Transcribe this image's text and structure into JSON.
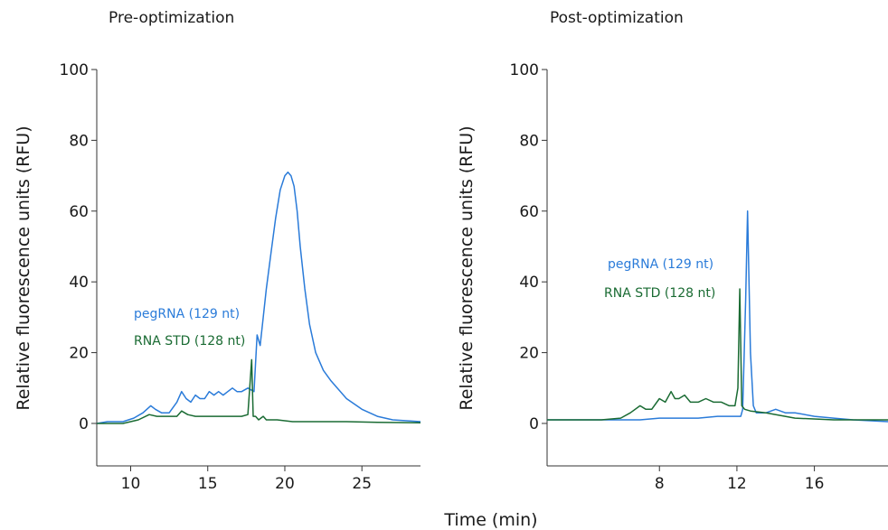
{
  "x_axis_title": "Time (min)",
  "colors": {
    "pegRNA": "#2a7bd9",
    "std": "#1a6b33"
  },
  "chart_data": [
    {
      "type": "line",
      "title": "Pre-optimization",
      "xlabel": "Time (min)",
      "ylabel": "Relative fluorescence units (RFU)",
      "xlim": [
        7.8,
        28.8
      ],
      "ylim": [
        -12,
        100
      ],
      "xticks": [
        10,
        15,
        20,
        25
      ],
      "yticks": [
        0,
        20,
        40,
        60,
        80,
        100
      ],
      "series": [
        {
          "name": "pegRNA (129 nt)",
          "color": "#2a7bd9",
          "x": [
            7.8,
            8.5,
            9.5,
            10.2,
            10.8,
            11.3,
            11.6,
            12.0,
            12.5,
            13.0,
            13.3,
            13.6,
            13.9,
            14.2,
            14.5,
            14.8,
            15.1,
            15.4,
            15.7,
            16.0,
            16.3,
            16.6,
            16.9,
            17.2,
            17.6,
            18.0,
            18.2,
            18.4,
            18.6,
            18.8,
            19.1,
            19.4,
            19.7,
            20.0,
            20.2,
            20.4,
            20.6,
            20.8,
            21.0,
            21.3,
            21.6,
            22.0,
            22.5,
            23.0,
            24.0,
            25.0,
            26.0,
            27.0,
            28.8
          ],
          "y": [
            0,
            0.5,
            0.5,
            1.5,
            3,
            5,
            4,
            3,
            3,
            6,
            9,
            7,
            6,
            8,
            7,
            7,
            9,
            8,
            9,
            8,
            9,
            10,
            9,
            9,
            10,
            9,
            25,
            22,
            30,
            38,
            48,
            58,
            66,
            70,
            71,
            70,
            67,
            60,
            50,
            38,
            28,
            20,
            15,
            12,
            7,
            4,
            2,
            1,
            0.5
          ]
        },
        {
          "name": "RNA STD (128 nt)",
          "color": "#1a6b33",
          "x": [
            7.8,
            9.5,
            10.5,
            11.2,
            11.7,
            12.0,
            12.5,
            13.0,
            13.3,
            13.7,
            14.2,
            14.7,
            15.2,
            15.7,
            16.2,
            16.7,
            17.2,
            17.6,
            17.85,
            17.95,
            18.1,
            18.3,
            18.6,
            18.8,
            19.0,
            19.5,
            20.5,
            22.0,
            24.0,
            26.0,
            28.8
          ],
          "y": [
            0,
            0,
            1,
            2.5,
            2,
            2,
            2,
            2,
            3.5,
            2.5,
            2,
            2,
            2,
            2,
            2,
            2,
            2,
            2.5,
            18,
            2,
            2,
            1,
            2,
            1,
            1,
            1,
            0.5,
            0.5,
            0.5,
            0.3,
            0.2
          ]
        }
      ]
    },
    {
      "type": "line",
      "title": "Post-optimization",
      "xlabel": "Time (min)",
      "ylabel": "Relative fluorescence units (RFU)",
      "xlim": [
        2.2,
        19.8
      ],
      "ylim": [
        -12,
        100
      ],
      "xticks": [
        8,
        12,
        16
      ],
      "yticks": [
        0,
        20,
        40,
        60,
        80,
        100
      ],
      "series": [
        {
          "name": "pegRNA (129 nt)",
          "color": "#2a7bd9",
          "x": [
            2.2,
            5.0,
            7.0,
            8.0,
            9.0,
            10.0,
            11.0,
            11.8,
            12.2,
            12.3,
            12.45,
            12.55,
            12.7,
            12.85,
            13.0,
            13.5,
            14.0,
            14.5,
            15.0,
            16.0,
            17.0,
            18.0,
            19.8
          ],
          "y": [
            1,
            1,
            1,
            1.5,
            1.5,
            1.5,
            2,
            2,
            2,
            4,
            35,
            60,
            20,
            5,
            3,
            3,
            4,
            3,
            3,
            2,
            1.5,
            1,
            0.5
          ]
        },
        {
          "name": "RNA STD (128 nt)",
          "color": "#1a6b33",
          "x": [
            2.2,
            5.0,
            6.0,
            6.5,
            7.0,
            7.3,
            7.6,
            8.0,
            8.3,
            8.6,
            8.8,
            9.0,
            9.3,
            9.6,
            10.0,
            10.4,
            10.8,
            11.2,
            11.6,
            11.9,
            12.05,
            12.15,
            12.25,
            12.4,
            12.7,
            13.5,
            15.0,
            17.0,
            19.8
          ],
          "y": [
            1,
            1,
            1.5,
            3,
            5,
            4,
            4,
            7,
            6,
            9,
            7,
            7,
            8,
            6,
            6,
            7,
            6,
            6,
            5,
            5,
            10,
            38,
            5,
            4,
            3.5,
            3,
            1.5,
            1,
            1
          ]
        }
      ]
    }
  ]
}
